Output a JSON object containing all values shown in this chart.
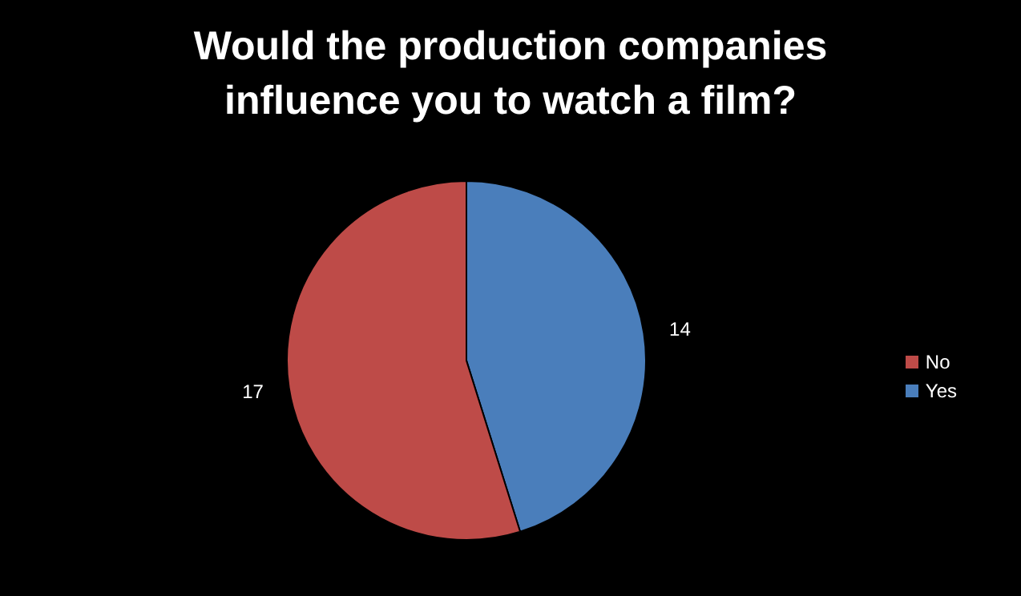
{
  "chart_data": {
    "type": "pie",
    "title": "Would the production companies influence you to watch a film?",
    "categories": [
      "Yes",
      "No"
    ],
    "values": [
      14,
      17
    ],
    "colors": [
      "#4a7ebb",
      "#be4b48"
    ],
    "data_labels": true,
    "legend": "right"
  }
}
